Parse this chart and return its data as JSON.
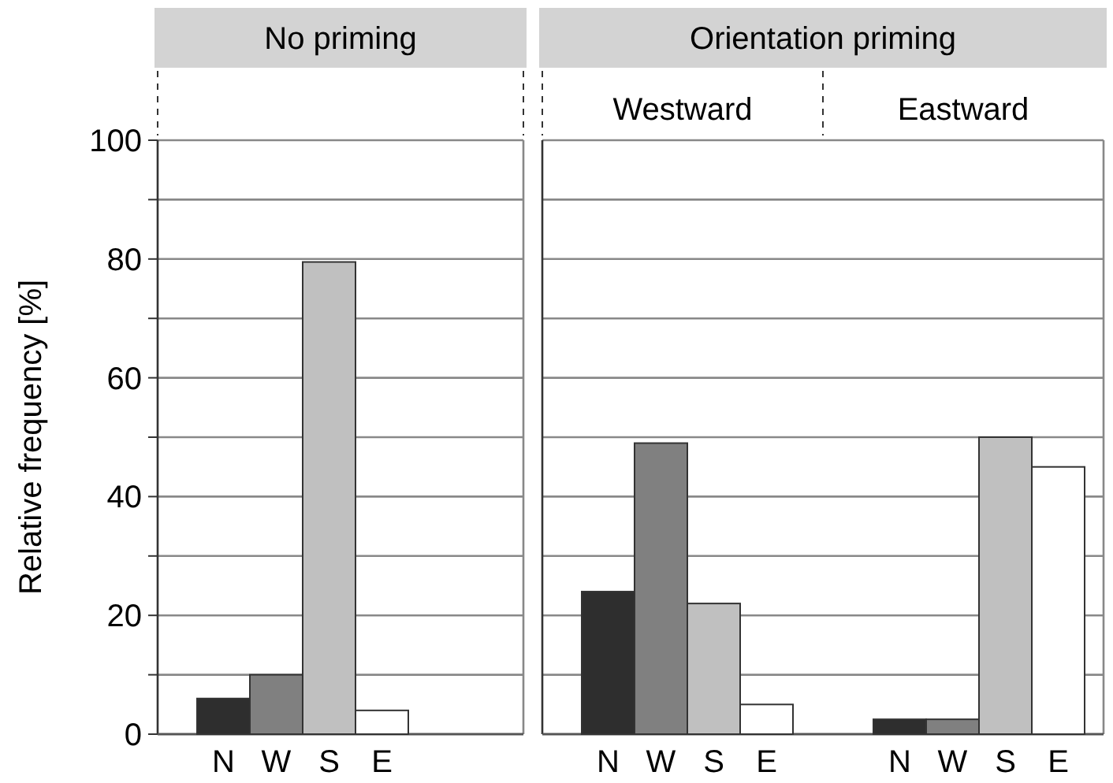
{
  "chart_data": [
    {
      "type": "bar",
      "title": "No priming",
      "ylabel": "Relative frequency [%]",
      "categories": [
        "N",
        "W",
        "S",
        "E"
      ],
      "values": [
        6,
        10,
        79.5,
        4
      ],
      "colors": [
        "#2e2e2e",
        "#808080",
        "#c0c0c0",
        "#ffffff"
      ],
      "ylim": [
        0,
        100
      ],
      "yticks": [
        0,
        {
          "value": 10,
          "label": null
        },
        20,
        {
          "value": 30,
          "label": null
        },
        40,
        {
          "value": 50,
          "label": null
        },
        60,
        {
          "value": 70,
          "label": null
        },
        80,
        {
          "value": 90,
          "label": null
        },
        100
      ],
      "grid": "y"
    },
    {
      "type": "bar",
      "title": "Orientation priming",
      "annotations": [
        "Westward",
        "Eastward"
      ],
      "categories": [
        "N",
        "W",
        "S",
        "E",
        "N",
        "W",
        "S",
        "E"
      ],
      "values": [
        24,
        49,
        22,
        5,
        2.5,
        2.5,
        50,
        45
      ],
      "colors": [
        "#2e2e2e",
        "#808080",
        "#c0c0c0",
        "#ffffff",
        "#2e2e2e",
        "#808080",
        "#c0c0c0",
        "#ffffff"
      ],
      "ylim": [
        0,
        100
      ],
      "yticks": [
        0,
        {
          "value": 10,
          "label": null
        },
        20,
        {
          "value": 30,
          "label": null
        },
        40,
        {
          "value": 50,
          "label": null
        },
        60,
        {
          "value": 70,
          "label": null
        },
        80,
        {
          "value": 90,
          "label": null
        },
        100
      ],
      "grid": "y",
      "tick_labels": "x"
    }
  ]
}
